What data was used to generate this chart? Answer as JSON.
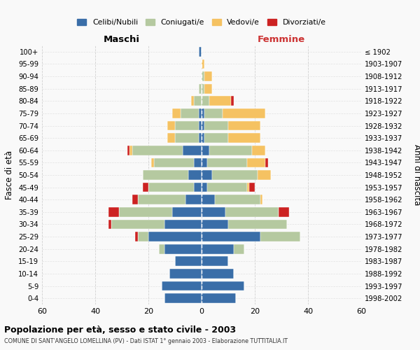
{
  "age_groups": [
    "100+",
    "95-99",
    "90-94",
    "85-89",
    "80-84",
    "75-79",
    "70-74",
    "65-69",
    "60-64",
    "55-59",
    "50-54",
    "45-49",
    "40-44",
    "35-39",
    "30-34",
    "25-29",
    "20-24",
    "15-19",
    "10-14",
    "5-9",
    "0-4"
  ],
  "birth_years": [
    "≤ 1902",
    "1903-1907",
    "1908-1912",
    "1913-1917",
    "1918-1922",
    "1923-1927",
    "1928-1932",
    "1933-1937",
    "1938-1942",
    "1943-1947",
    "1948-1952",
    "1953-1957",
    "1958-1962",
    "1963-1967",
    "1968-1972",
    "1973-1977",
    "1978-1982",
    "1983-1987",
    "1988-1992",
    "1993-1997",
    "1998-2002"
  ],
  "maschi": {
    "celibi": [
      1,
      0,
      0,
      0,
      0,
      1,
      1,
      1,
      7,
      3,
      5,
      3,
      6,
      11,
      14,
      20,
      14,
      10,
      12,
      15,
      14
    ],
    "coniugati": [
      0,
      0,
      0,
      1,
      3,
      7,
      9,
      9,
      19,
      15,
      17,
      17,
      18,
      20,
      20,
      4,
      2,
      0,
      0,
      0,
      0
    ],
    "vedovi": [
      0,
      0,
      0,
      0,
      1,
      3,
      3,
      3,
      1,
      1,
      0,
      0,
      0,
      0,
      0,
      0,
      0,
      0,
      0,
      0,
      0
    ],
    "divorziati": [
      0,
      0,
      0,
      0,
      0,
      0,
      0,
      0,
      1,
      0,
      0,
      2,
      2,
      4,
      1,
      1,
      0,
      0,
      0,
      0,
      0
    ]
  },
  "femmine": {
    "nubili": [
      0,
      0,
      0,
      0,
      0,
      1,
      1,
      1,
      3,
      2,
      4,
      2,
      5,
      9,
      10,
      22,
      12,
      10,
      12,
      16,
      13
    ],
    "coniugate": [
      0,
      0,
      1,
      1,
      3,
      7,
      9,
      9,
      16,
      15,
      17,
      15,
      17,
      20,
      22,
      15,
      4,
      0,
      0,
      0,
      0
    ],
    "vedove": [
      0,
      1,
      3,
      3,
      8,
      16,
      12,
      12,
      5,
      7,
      5,
      1,
      1,
      0,
      0,
      0,
      0,
      0,
      0,
      0,
      0
    ],
    "divorziate": [
      0,
      0,
      0,
      0,
      1,
      0,
      0,
      0,
      0,
      1,
      0,
      2,
      0,
      4,
      0,
      0,
      0,
      0,
      0,
      0,
      0
    ]
  },
  "colors": {
    "celibi": "#3a6ea8",
    "coniugati": "#b5c9a0",
    "vedovi": "#f5c262",
    "divorziati": "#cc2222"
  },
  "xlim": 60,
  "title": "Popolazione per età, sesso e stato civile - 2003",
  "subtitle": "COMUNE DI SANT'ANGELO LOMELLINA (PV) - Dati ISTAT 1° gennaio 2003 - Elaborazione TUTTITALIA.IT",
  "ylabel_left": "Fasce di età",
  "ylabel_right": "Anni di nascita",
  "xlabel_left": "Maschi",
  "xlabel_right": "Femmine",
  "bg_color": "#f9f9f9",
  "grid_color": "#cccccc"
}
